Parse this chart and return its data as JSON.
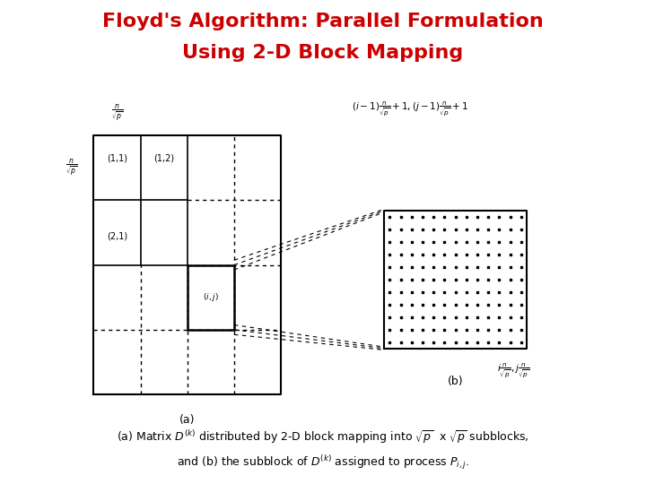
{
  "title_line1": "Floyd's Algorithm: Parallel Formulation",
  "title_line2": "Using 2-D Block Mapping",
  "title_color": "#cc0000",
  "title_fontsize": 16,
  "bg_color": "#ffffff",
  "label_a": "(a)",
  "label_b": "(b)",
  "caption_line1": "(a) Matrix $D^{(k)}$ distributed by 2-D block mapping into $\\sqrt{p}$  x $\\sqrt{p}$ subblocks,",
  "caption_line2": "and (b) the subblock of $D^{(k)}$ assigned to process $P_{i,j}$.",
  "grid_a": {
    "l": 0.145,
    "r": 0.435,
    "b": 0.185,
    "t": 0.72
  },
  "grid_b": {
    "l": 0.595,
    "r": 0.815,
    "b": 0.28,
    "t": 0.565
  },
  "cell_ij_col": 3,
  "cell_ij_row": 3
}
